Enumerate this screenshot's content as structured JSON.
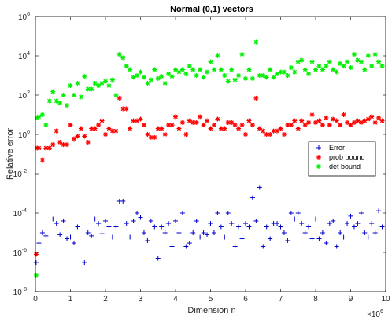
{
  "chart_data": {
    "type": "scatter",
    "title": "Normal (0,1) vectors",
    "xlabel": "Dimension n",
    "ylabel": "Relative error",
    "xlim": [
      0,
      10
    ],
    "ylim_log10": [
      -8,
      6
    ],
    "x_multiplier": "×10",
    "x_multiplier_exp": "6",
    "x_ticks": [
      "0",
      "1",
      "2",
      "3",
      "4",
      "5",
      "6",
      "7",
      "8",
      "9",
      "10"
    ],
    "y_tick_base": "10",
    "y_tick_exps": [
      "-8",
      "-6",
      "-4",
      "-2",
      "0",
      "2",
      "4",
      "6"
    ],
    "y_scale": "log",
    "grid": false,
    "legend_position": "right-middle",
    "legend_marker_glyphs": [
      "+",
      "*",
      "*"
    ],
    "x_unit": "millions (×10^6)",
    "series": [
      {
        "name": "Error",
        "marker": "+",
        "color": "#0000cc",
        "x": [
          0.02,
          0.1,
          0.2,
          0.3,
          0.5,
          0.6,
          0.7,
          0.8,
          0.9,
          1.0,
          1.1,
          1.2,
          1.4,
          1.5,
          1.6,
          1.7,
          1.8,
          1.9,
          2.0,
          2.1,
          2.2,
          2.3,
          2.4,
          2.5,
          2.6,
          2.7,
          2.8,
          2.9,
          3.0,
          3.1,
          3.2,
          3.3,
          3.4,
          3.5,
          3.6,
          3.7,
          3.8,
          3.9,
          4.0,
          4.1,
          4.2,
          4.3,
          4.4,
          4.5,
          4.6,
          4.7,
          4.8,
          4.9,
          5.0,
          5.1,
          5.2,
          5.3,
          5.4,
          5.5,
          5.6,
          5.7,
          5.8,
          5.9,
          6.0,
          6.1,
          6.2,
          6.3,
          6.4,
          6.5,
          6.6,
          6.7,
          6.8,
          6.9,
          7.0,
          7.1,
          7.2,
          7.3,
          7.4,
          7.5,
          7.6,
          7.7,
          7.8,
          7.9,
          8.0,
          8.1,
          8.2,
          8.3,
          8.4,
          8.5,
          8.6,
          8.7,
          8.8,
          8.9,
          9.0,
          9.1,
          9.2,
          9.3,
          9.4,
          9.5,
          9.6,
          9.7,
          9.8,
          9.9
        ],
        "y": [
          3e-07,
          3e-06,
          1e-05,
          7e-06,
          5e-05,
          3e-05,
          8e-06,
          4e-05,
          5e-06,
          6e-06,
          3e-06,
          2e-05,
          3e-07,
          1e-05,
          7e-06,
          5e-05,
          3e-05,
          9e-06,
          4e-05,
          2e-05,
          6e-06,
          2e-05,
          0.0004,
          0.0004,
          3e-05,
          6e-06,
          4e-05,
          0.0001,
          6e-05,
          1e-05,
          4e-06,
          4e-05,
          2e-05,
          5e-07,
          2e-05,
          1e-05,
          3e-05,
          2e-06,
          4e-05,
          1e-05,
          0.0001,
          2e-06,
          3e-06,
          1e-05,
          4e-05,
          6e-06,
          1e-05,
          8e-06,
          3e-05,
          1e-05,
          0.0001,
          2e-05,
          6e-06,
          0.0001,
          3e-05,
          2e-06,
          2e-05,
          5e-06,
          3e-05,
          2e-05,
          0.0006,
          4e-05,
          0.002,
          2e-06,
          2e-05,
          5e-06,
          3e-05,
          3e-05,
          2e-05,
          1e-05,
          4e-06,
          0.0001,
          5e-05,
          0.0001,
          3e-05,
          1e-05,
          2e-05,
          5e-06,
          5e-05,
          5e-06,
          1e-05,
          3e-06,
          3e-05,
          4e-05,
          2e-06,
          1e-05,
          6e-06,
          3e-05,
          7e-05,
          2e-05,
          3e-05,
          0.0001,
          1e-05,
          6e-06,
          3e-05,
          1e-05,
          0.00013,
          2e-05
        ]
      },
      {
        "name": "prob bound",
        "marker": "*",
        "color": "#ff0000",
        "x": [
          0.02,
          0.05,
          0.1,
          0.2,
          0.3,
          0.4,
          0.5,
          0.6,
          0.7,
          0.8,
          0.9,
          1.0,
          1.1,
          1.2,
          1.3,
          1.4,
          1.5,
          1.6,
          1.7,
          1.8,
          1.9,
          2.0,
          2.1,
          2.2,
          2.3,
          2.4,
          2.5,
          2.6,
          2.7,
          2.8,
          2.9,
          3.0,
          3.1,
          3.2,
          3.3,
          3.4,
          3.5,
          3.6,
          3.7,
          3.8,
          3.9,
          4.0,
          4.1,
          4.2,
          4.3,
          4.4,
          4.5,
          4.6,
          4.7,
          4.8,
          4.9,
          5.0,
          5.1,
          5.2,
          5.3,
          5.4,
          5.5,
          5.6,
          5.7,
          5.8,
          5.9,
          6.0,
          6.1,
          6.2,
          6.3,
          6.4,
          6.5,
          6.6,
          6.7,
          6.8,
          6.9,
          7.0,
          7.1,
          7.2,
          7.3,
          7.4,
          7.5,
          7.6,
          7.7,
          7.8,
          7.9,
          8.0,
          8.1,
          8.2,
          8.3,
          8.4,
          8.5,
          8.6,
          8.7,
          8.8,
          8.9,
          9.0,
          9.1,
          9.2,
          9.3,
          9.4,
          9.5,
          9.6,
          9.7,
          9.8,
          9.9
        ],
        "y": [
          8e-07,
          0.2,
          0.2,
          0.05,
          0.2,
          0.2,
          0.3,
          1.5,
          0.4,
          0.3,
          0.3,
          3,
          0.6,
          0.8,
          2,
          0.8,
          0.4,
          2,
          2,
          3,
          5,
          1,
          2,
          1.5,
          1.5,
          70,
          20,
          20,
          2,
          5,
          5,
          6,
          3,
          1,
          0.7,
          0.7,
          2,
          2,
          1,
          3,
          3,
          8,
          2,
          4,
          1,
          5,
          4,
          4,
          8,
          3,
          5,
          2,
          3,
          6,
          2,
          2,
          4,
          4,
          3,
          2,
          3,
          1,
          5,
          3,
          70,
          2,
          1.5,
          1,
          1,
          1.5,
          1.5,
          2,
          1,
          3,
          3,
          5,
          2,
          5,
          3,
          4,
          10,
          4,
          5,
          3,
          7,
          3,
          6,
          5,
          3,
          10,
          4,
          3,
          4,
          5,
          4,
          5,
          6,
          8,
          4,
          7,
          5
        ]
      },
      {
        "name": "det bound",
        "marker": "*",
        "color": "#00ee00",
        "x": [
          0.02,
          0.05,
          0.1,
          0.2,
          0.3,
          0.4,
          0.5,
          0.6,
          0.7,
          0.8,
          0.9,
          1.0,
          1.1,
          1.2,
          1.3,
          1.4,
          1.5,
          1.6,
          1.7,
          1.8,
          1.9,
          2.0,
          2.1,
          2.2,
          2.3,
          2.4,
          2.5,
          2.6,
          2.7,
          2.8,
          2.9,
          3.0,
          3.1,
          3.2,
          3.3,
          3.4,
          3.5,
          3.6,
          3.7,
          3.8,
          3.9,
          4.0,
          4.1,
          4.2,
          4.3,
          4.4,
          4.5,
          4.6,
          4.7,
          4.8,
          4.9,
          5.0,
          5.1,
          5.2,
          5.3,
          5.4,
          5.5,
          5.6,
          5.7,
          5.8,
          5.9,
          6.0,
          6.1,
          6.2,
          6.3,
          6.4,
          6.5,
          6.6,
          6.7,
          6.8,
          6.9,
          7.0,
          7.1,
          7.2,
          7.3,
          7.4,
          7.5,
          7.6,
          7.7,
          7.8,
          7.9,
          8.0,
          8.1,
          8.2,
          8.3,
          8.4,
          8.5,
          8.6,
          8.7,
          8.8,
          8.9,
          9.0,
          9.1,
          9.2,
          9.3,
          9.4,
          9.5,
          9.6,
          9.7,
          9.8,
          9.9
        ],
        "y": [
          7e-08,
          7,
          8,
          10,
          3,
          50,
          150,
          50,
          40,
          100,
          30,
          300,
          100,
          400,
          80,
          900,
          200,
          200,
          400,
          300,
          400,
          500,
          300,
          600,
          100,
          12000,
          8000,
          3000,
          2000,
          800,
          1000,
          1500,
          800,
          400,
          600,
          2000,
          700,
          900,
          400,
          1200,
          900,
          2000,
          1500,
          2000,
          1200,
          3000,
          2000,
          1000,
          2000,
          800,
          1500,
          5000,
          2000,
          10000,
          2000,
          1000,
          500,
          2000,
          600,
          1000,
          12000,
          700,
          2000,
          700,
          50000,
          1000,
          1000,
          800,
          2000,
          800,
          1200,
          1500,
          1500,
          1000,
          2500,
          1500,
          5000,
          6000,
          2000,
          1200,
          5000,
          2000,
          3000,
          2000,
          3000,
          5000,
          2000,
          1500,
          4000,
          3000,
          5000,
          2500,
          12000,
          6000,
          5000,
          2000,
          10000,
          3000,
          12000,
          5000,
          3000
        ]
      }
    ]
  }
}
